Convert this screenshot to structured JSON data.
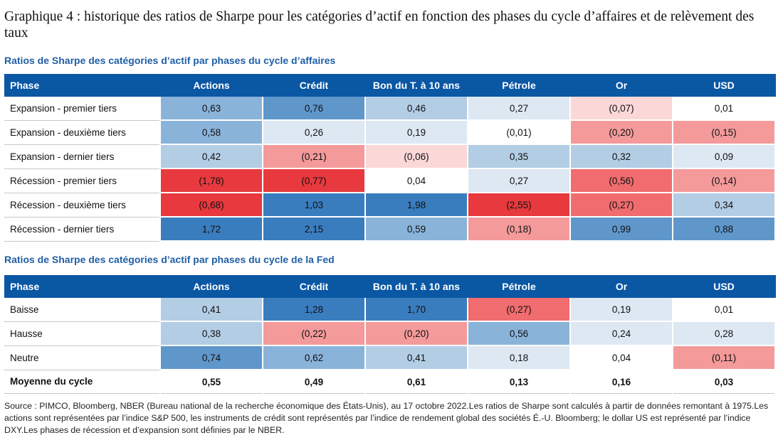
{
  "title": "Graphique 4 : historique des ratios de Sharpe pour les catégories d’actif en fonction des phases du cycle d’affaires et de relèvement des taux",
  "colors": {
    "header_blue": "#0a57a4",
    "subtitle_blue": "#1f5fa6",
    "heat_scale": [
      "#e8393e",
      "#f06c6e",
      "#f49a9b",
      "#fbd7d8",
      "#ffffff",
      "#dde8f3",
      "#b3cde5",
      "#8ab3d9",
      "#5f97cb",
      "#3a7dbf"
    ]
  },
  "headers": [
    "Phase",
    "Actions",
    "Crédit",
    "Bon du T. à 10 ans",
    "Pétrole",
    "Or",
    "USD"
  ],
  "business_cycle": {
    "subtitle": "Ratios de Sharpe des catégories d’actif par phases du cycle d’affaires",
    "rows": [
      {
        "phase": "Expansion - premier tiers",
        "values": [
          "0,63",
          "0,76",
          "0,46",
          "0,27",
          "(0,07)",
          "0,01"
        ]
      },
      {
        "phase": "Expansion - deuxième tiers",
        "values": [
          "0,58",
          "0,26",
          "0,19",
          "(0,01)",
          "(0,20)",
          "(0,15)"
        ]
      },
      {
        "phase": "Expansion - dernier tiers",
        "values": [
          "0,42",
          "(0,21)",
          "(0,06)",
          "0,35",
          "0,32",
          "0,09"
        ]
      },
      {
        "phase": "Récession - premier tiers",
        "values": [
          "(1,78)",
          "(0,77)",
          "0,04",
          "0,27",
          "(0,56)",
          "(0,14)"
        ]
      },
      {
        "phase": "Récession - deuxième tiers",
        "values": [
          "(0,68)",
          "1,03",
          "1,98",
          "(2,55)",
          "(0,27)",
          "0,34"
        ]
      },
      {
        "phase": "Récession - dernier tiers",
        "values": [
          "1,72",
          "2,15",
          "0,59",
          "(0,18)",
          "0,99",
          "0,88"
        ]
      }
    ]
  },
  "fed_cycle": {
    "subtitle": "Ratios de Sharpe des catégories d’actif par phases du cycle de la Fed",
    "rows": [
      {
        "phase": "Baisse",
        "values": [
          "0,41",
          "1,28",
          "1,70",
          "(0,27)",
          "0,19",
          "0,01"
        ]
      },
      {
        "phase": "Hausse",
        "values": [
          "0,38",
          "(0,22)",
          "(0,20)",
          "0,56",
          "0,24",
          "0,28"
        ]
      },
      {
        "phase": "Neutre",
        "values": [
          "0,74",
          "0,62",
          "0,41",
          "0,18",
          "0,04",
          "(0,11)"
        ]
      }
    ],
    "average": {
      "phase": "Moyenne du cycle",
      "values": [
        "0,55",
        "0,49",
        "0,61",
        "0,13",
        "0,16",
        "0,03"
      ]
    }
  },
  "source": "Source : PIMCO, Bloomberg, NBER (Bureau national de la recherche économique des États-Unis), au 17 octobre 2022.Les ratios de Sharpe sont calculés à partir de données remontant à 1975.Les actions sont représentées par l’indice S&P 500, les instruments de crédit sont représentés par l’indice de rendement global des sociétés É.-U. Bloomberg; le dollar US est représenté par l’indice DXY.Les phases de récession et d’expansion sont définies par le NBER."
}
